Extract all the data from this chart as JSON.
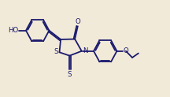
{
  "bg_color": "#f2ead8",
  "bond_color": "#1a1a6e",
  "linewidth": 1.3,
  "fontsize": 6.2,
  "figsize": [
    2.16,
    1.23
  ],
  "dpi": 100,
  "xlim": [
    0,
    10.5
  ],
  "ylim": [
    0.2,
    5.8
  ]
}
